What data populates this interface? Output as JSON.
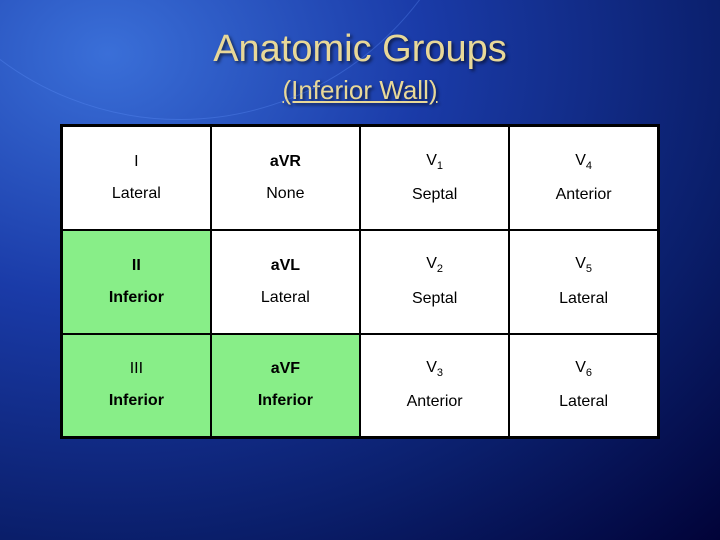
{
  "title": "Anatomic Groups",
  "subtitle": "(Inferior Wall)",
  "table": {
    "highlight_color": "#88ee88",
    "bg_color": "#ffffff",
    "border_color": "#000000",
    "rows": [
      [
        {
          "lead": "I",
          "lead_bold": false,
          "region": "Lateral",
          "region_bold": false,
          "highlight": false
        },
        {
          "lead": "aVR",
          "lead_bold": true,
          "region": "None",
          "region_bold": false,
          "highlight": false
        },
        {
          "lead": "V",
          "lead_sub": "1",
          "lead_bold": false,
          "region": "Septal",
          "region_bold": false,
          "highlight": false
        },
        {
          "lead": "V",
          "lead_sub": "4",
          "lead_bold": false,
          "region": "Anterior",
          "region_bold": false,
          "highlight": false
        }
      ],
      [
        {
          "lead": "II",
          "lead_bold": true,
          "region": "Inferior",
          "region_bold": true,
          "highlight": true
        },
        {
          "lead": "aVL",
          "lead_bold": true,
          "region": "Lateral",
          "region_bold": false,
          "highlight": false
        },
        {
          "lead": "V",
          "lead_sub": "2",
          "lead_bold": false,
          "region": "Septal",
          "region_bold": false,
          "highlight": false
        },
        {
          "lead": "V",
          "lead_sub": "5",
          "lead_bold": false,
          "region": "Lateral",
          "region_bold": false,
          "highlight": false
        }
      ],
      [
        {
          "lead": "III",
          "lead_bold": false,
          "region": "Inferior",
          "region_bold": true,
          "highlight": true
        },
        {
          "lead": "aVF",
          "lead_bold": true,
          "region": "Inferior",
          "region_bold": true,
          "highlight": true
        },
        {
          "lead": "V",
          "lead_sub": "3",
          "lead_bold": false,
          "region": "Anterior",
          "region_bold": false,
          "highlight": false
        },
        {
          "lead": "V",
          "lead_sub": "6",
          "lead_bold": false,
          "region": "Lateral",
          "region_bold": false,
          "highlight": false
        }
      ]
    ]
  }
}
